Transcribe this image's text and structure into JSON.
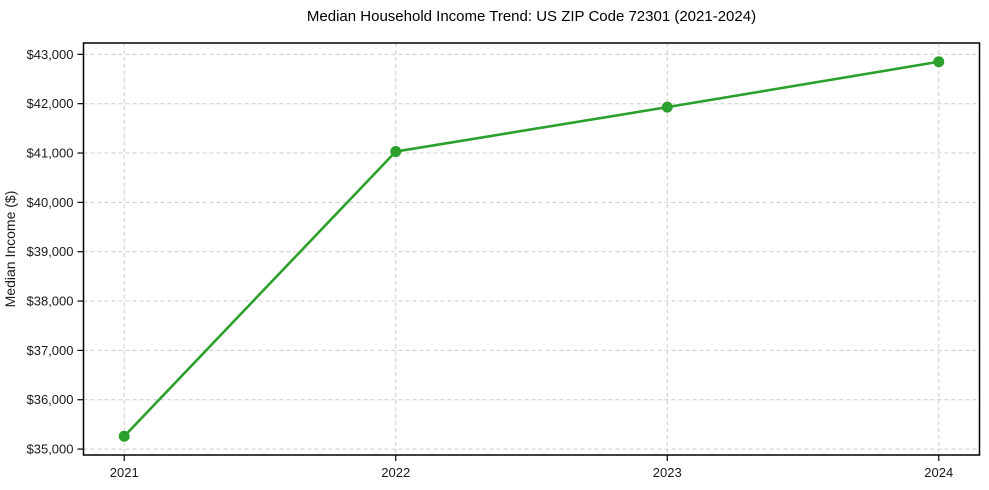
{
  "chart_data": {
    "type": "line",
    "title": "Median Household Income Trend: US ZIP Code 72301 (2021-2024)",
    "xlabel": "",
    "ylabel": "Median Income ($)",
    "x": [
      2021,
      2022,
      2023,
      2024
    ],
    "x_tick_labels": [
      "2021",
      "2022",
      "2023",
      "2024"
    ],
    "series": [
      {
        "name": "Median Household Income",
        "values": [
          35260,
          41030,
          41930,
          42850
        ],
        "color": "#2ca02c",
        "marker": "circle"
      }
    ],
    "y_ticks": [
      35000,
      36000,
      37000,
      38000,
      39000,
      40000,
      41000,
      42000,
      43000
    ],
    "y_tick_labels": [
      "$35,000",
      "$36,000",
      "$37,000",
      "$38,000",
      "$39,000",
      "$40,000",
      "$41,000",
      "$42,000",
      "$43,000"
    ],
    "xlim": [
      2020.85,
      2024.15
    ],
    "ylim": [
      34880,
      43230
    ],
    "grid": true,
    "grid_style": "dashed",
    "grid_color": "#cccccc",
    "axis_color": "#000000",
    "background": "#ffffff",
    "legend_position": "none"
  }
}
